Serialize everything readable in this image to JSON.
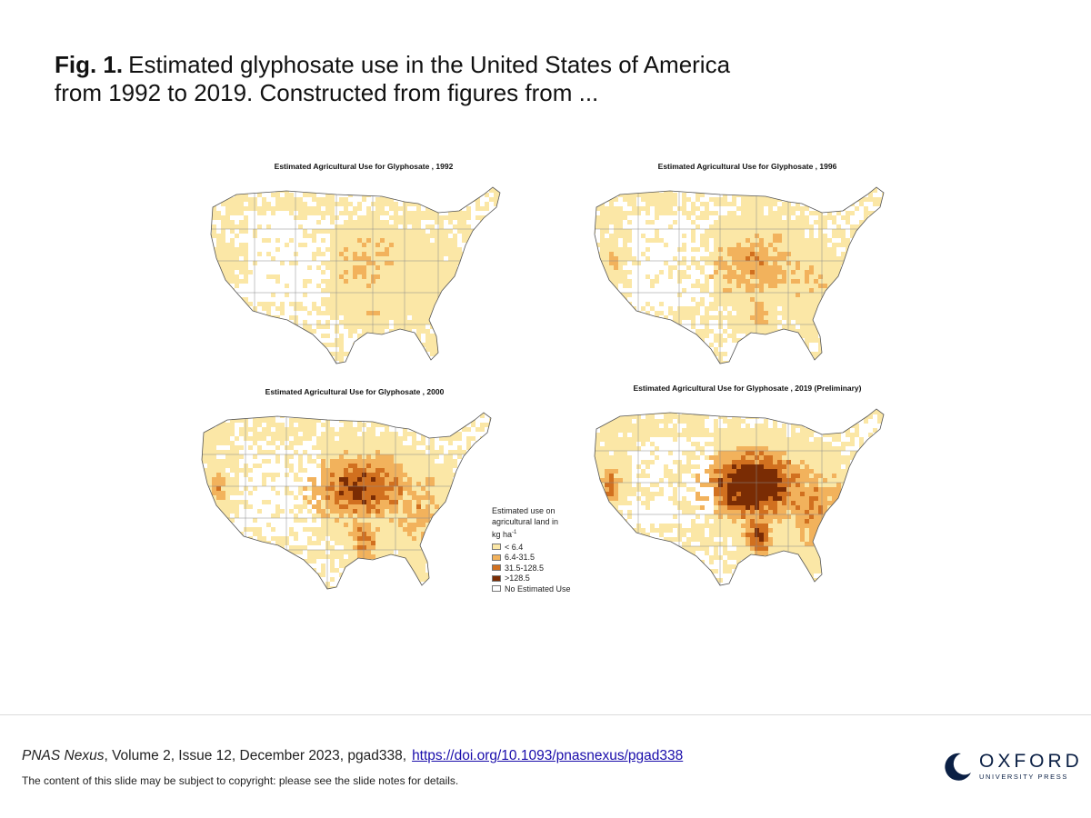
{
  "caption": {
    "label": "Fig. 1.",
    "text": "Estimated glyphosate use in the United States of America from 1992 to 2019. Constructed from figures from ..."
  },
  "maps": [
    {
      "title": "Estimated Agricultural Use for Glyphosate , 1992",
      "intensity": 0.15
    },
    {
      "title": "Estimated Agricultural Use for Glyphosate , 1996",
      "intensity": 0.35
    },
    {
      "title": "Estimated Agricultural Use for Glyphosate , 2000",
      "intensity": 0.7
    },
    {
      "title": "Estimated Agricultural Use for Glyphosate , 2019 (Preliminary)",
      "intensity": 1.0
    }
  ],
  "legend": {
    "title_line1": "Estimated use on",
    "title_line2": "agricultural land in",
    "unit_base": "kg ha",
    "unit_exp": "-1",
    "items": [
      {
        "label": "< 6.4",
        "color": "#fbe7a6"
      },
      {
        "label": "6.4-31.5",
        "color": "#f2b25c"
      },
      {
        "label": "31.5-128.5",
        "color": "#d1701f"
      },
      {
        "label": ">128.5",
        "color": "#7a2c04"
      },
      {
        "label": "No Estimated Use",
        "color": "#ffffff"
      }
    ]
  },
  "footer": {
    "journal": "PNAS Nexus",
    "details": ", Volume 2, Issue 12, December 2023, pgad338,",
    "doi": "https://doi.org/10.1093/pnasnexus/pgad338",
    "copyright": "The content of this slide may be subject to copyright: please see the slide notes for details.",
    "publisher_name": "OXFORD",
    "publisher_sub": "UNIVERSITY PRESS"
  }
}
